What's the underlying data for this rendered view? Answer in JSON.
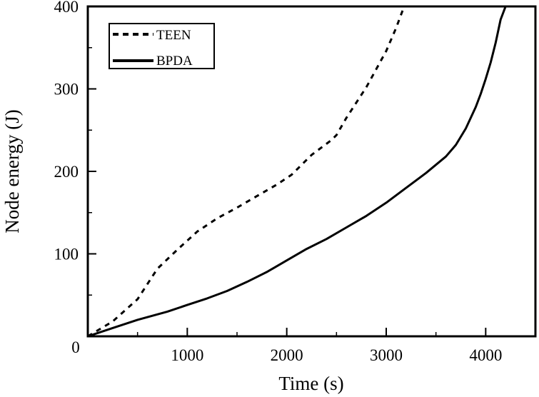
{
  "chart_data": {
    "type": "line",
    "xlabel": "Time (s)",
    "ylabel": "Node energy (J)",
    "xlim": [
      0,
      4500
    ],
    "ylim": [
      0,
      400
    ],
    "xticks": [
      1000,
      2000,
      3000,
      4000
    ],
    "x_origin_label": "0",
    "yticks": [
      100,
      200,
      300,
      400
    ],
    "legend_position": "top-left",
    "series": [
      {
        "name": "TEEN",
        "style": "dashed",
        "color": "#000000",
        "x": [
          0,
          250,
          500,
          700,
          900,
          1100,
          1300,
          1500,
          1700,
          1900,
          2050,
          2250,
          2450,
          2500,
          2600,
          2800,
          3000,
          3100,
          3180
        ],
        "y": [
          0,
          18,
          45,
          82,
          105,
          127,
          143,
          156,
          170,
          184,
          196,
          220,
          238,
          244,
          265,
          302,
          346,
          374,
          400
        ]
      },
      {
        "name": "BPDA",
        "style": "solid",
        "color": "#000000",
        "x": [
          0,
          250,
          500,
          800,
          1000,
          1200,
          1400,
          1600,
          1800,
          2000,
          2200,
          2400,
          2600,
          2800,
          3000,
          3200,
          3400,
          3600,
          3700,
          3800,
          3900,
          3950,
          4000,
          4050,
          4100,
          4150,
          4200
        ],
        "y": [
          0,
          10,
          20,
          30,
          38,
          46,
          55,
          66,
          78,
          92,
          106,
          118,
          132,
          146,
          162,
          180,
          198,
          218,
          232,
          252,
          278,
          294,
          312,
          332,
          356,
          384,
          400
        ]
      }
    ]
  }
}
